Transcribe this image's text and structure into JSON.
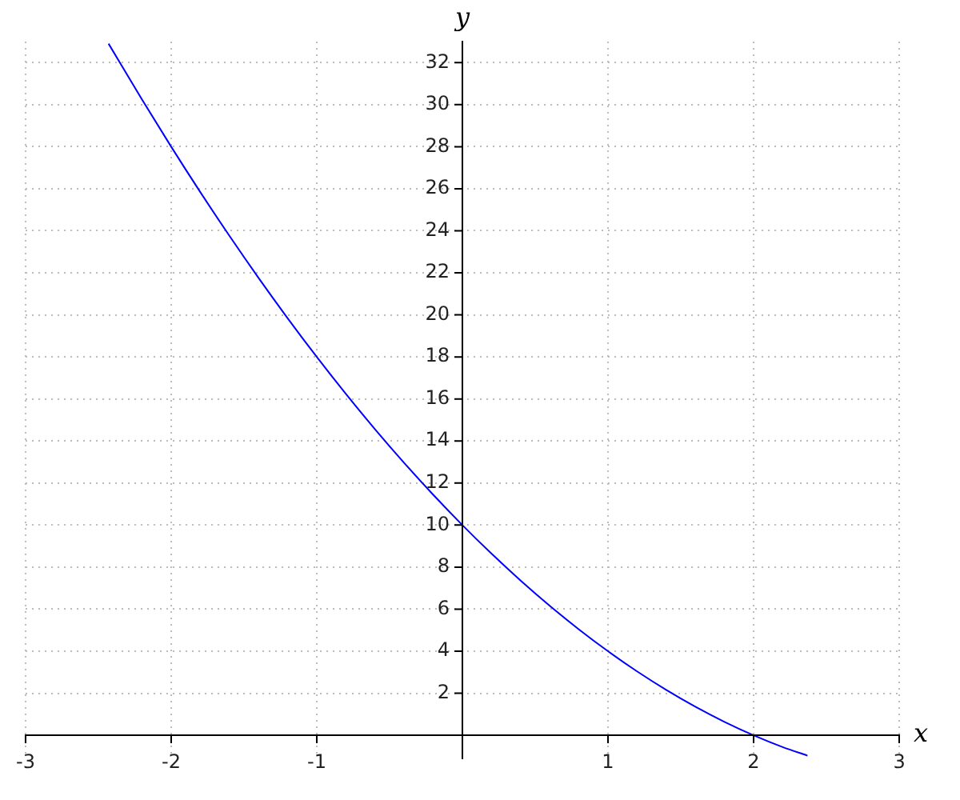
{
  "chart_data": {
    "type": "line",
    "xlabel": "x",
    "ylabel": "y",
    "x": [
      -2.43,
      -2.2,
      -2,
      -1.8,
      -1.6,
      -1.4,
      -1.2,
      -1,
      -0.8,
      -0.6,
      -0.4,
      -0.2,
      0,
      0.2,
      0.4,
      0.6,
      0.8,
      1,
      1.2,
      1.4,
      1.6,
      1.8,
      2,
      2.2,
      2.37
    ],
    "values": [
      32.9,
      30.24,
      28,
      25.84,
      23.76,
      21.76,
      19.84,
      18,
      16.24,
      14.56,
      12.96,
      11.44,
      10,
      8.64,
      7.36,
      6.16,
      5.04,
      4,
      3.04,
      2.16,
      1.36,
      0.64,
      0,
      -0.56,
      -0.97
    ],
    "color": "#0000ff",
    "xlim": [
      -3,
      3
    ],
    "ylim": [
      -1.1,
      33
    ],
    "xticks": [
      -3,
      -2,
      -1,
      1,
      2,
      3
    ],
    "yticks": [
      2,
      4,
      6,
      8,
      10,
      12,
      14,
      16,
      18,
      20,
      22,
      24,
      26,
      28,
      30,
      32
    ],
    "grid": true
  }
}
